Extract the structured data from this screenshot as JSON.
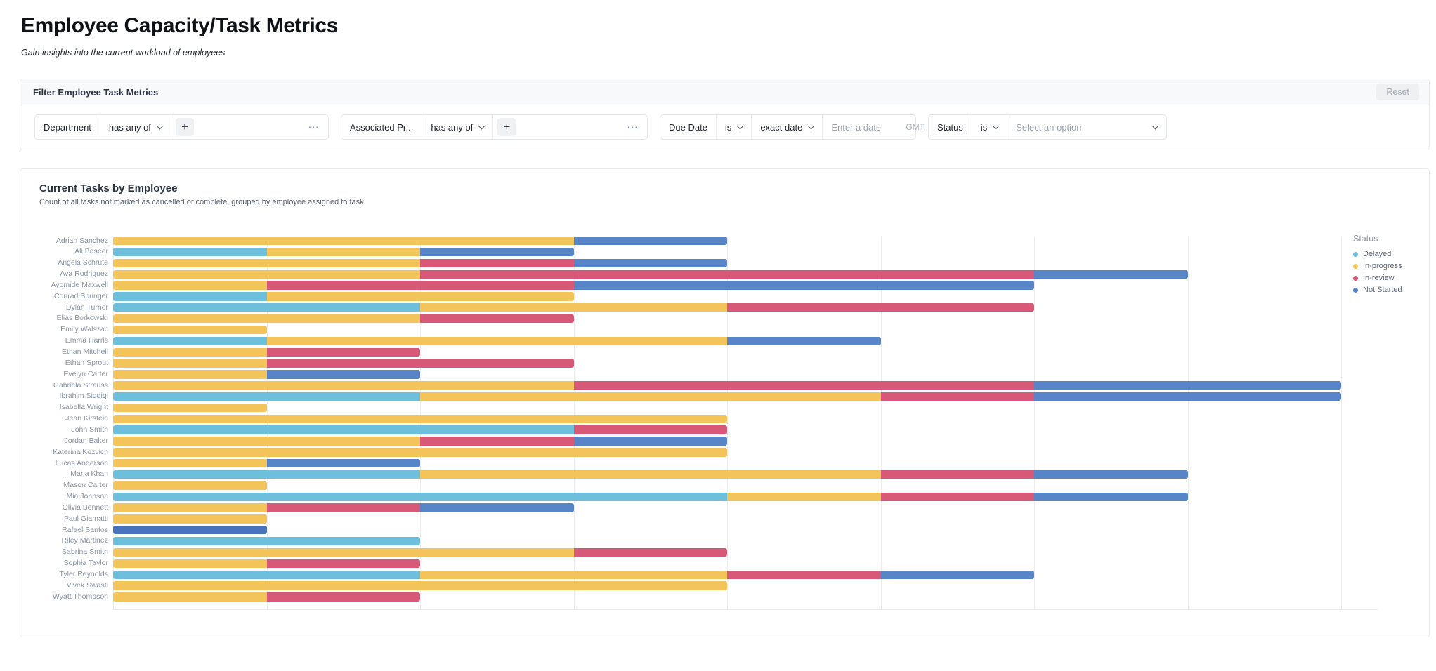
{
  "page": {
    "title": "Employee Capacity/Task Metrics",
    "subtitle": "Gain insights into the current workload of employees"
  },
  "filters": {
    "title": "Filter Employee Task Metrics",
    "reset": "Reset",
    "department": {
      "field": "Department",
      "operator": "has any of",
      "add": "+",
      "more": "···"
    },
    "project": {
      "field": "Associated Pr...",
      "operator": "has any of",
      "add": "+",
      "more": "···"
    },
    "due_date": {
      "field": "Due Date",
      "operator": "is",
      "mode": "exact date",
      "placeholder": "Enter a date",
      "timezone": "GMT"
    },
    "status": {
      "field": "Status",
      "operator": "is",
      "placeholder": "Select an option"
    }
  },
  "chart": {
    "title": "Current Tasks by Employee",
    "subtitle": "Count of all tasks not marked as cancelled or complete, grouped by employee assigned to task",
    "legend_title": "Status"
  },
  "chart_data": {
    "type": "bar",
    "orientation": "horizontal",
    "stacked": true,
    "grid": true,
    "legend_position": "right",
    "xlim": [
      0,
      8.25
    ],
    "x_gridline_interval": 1,
    "x_axis_labels_visible": false,
    "categories": [
      "Adrian Sanchez",
      "Ali Baseer",
      "Angela Schrute",
      "Ava Rodriguez",
      "Ayomide Maxwell",
      "Conrad Springer",
      "Dylan Turner",
      "Elias Borkowski",
      "Emily Walszac",
      "Emma Harris",
      "Ethan Mitchell",
      "Ethan Sprout",
      "Evelyn Carter",
      "Gabriela Strauss",
      "Ibrahim Siddiqi",
      "Isabella Wright",
      "Jean Kirstein",
      "John Smith",
      "Jordan Baker",
      "Katerina Kozvich",
      "Lucas Anderson",
      "Maria Khan",
      "Mason Carter",
      "Mia Johnson",
      "Olivia Bennett",
      "Paul Giamatti",
      "Rafael Santos",
      "Riley Martinez",
      "Sabrina Smith",
      "Sophia Taylor",
      "Tyler Reynolds",
      "Vivek Swasti",
      "Wyatt Thompson"
    ],
    "series": [
      {
        "name": "Delayed",
        "color": "#6dbfdb",
        "values": [
          0,
          1,
          0,
          0,
          0,
          1,
          2,
          0,
          0,
          1,
          0,
          0,
          0,
          0,
          2,
          0,
          0,
          3,
          0,
          0,
          0,
          2,
          0,
          4,
          0,
          0,
          0,
          2,
          0,
          0,
          2,
          0,
          0
        ]
      },
      {
        "name": "In-progress",
        "color": "#f2c45a",
        "values": [
          3,
          1,
          2,
          2,
          1,
          2,
          2,
          2,
          1,
          3,
          1,
          1,
          1,
          3,
          3,
          1,
          4,
          0,
          2,
          4,
          1,
          3,
          1,
          1,
          1,
          1,
          0,
          0,
          3,
          1,
          2,
          4,
          1
        ]
      },
      {
        "name": "In-review",
        "color": "#d85878",
        "values": [
          0,
          0,
          1,
          4,
          2,
          0,
          2,
          1,
          0,
          0,
          1,
          2,
          0,
          3,
          1,
          0,
          0,
          1,
          1,
          0,
          0,
          1,
          0,
          1,
          1,
          0,
          0,
          0,
          1,
          1,
          1,
          0,
          1
        ]
      },
      {
        "name": "Not Started",
        "color": "#5885c8",
        "values": [
          1,
          1,
          1,
          1,
          3,
          0,
          0,
          0,
          0,
          1,
          0,
          0,
          1,
          2,
          2,
          0,
          0,
          0,
          1,
          0,
          1,
          1,
          0,
          1,
          1,
          0,
          1,
          0,
          0,
          0,
          1,
          0,
          0
        ]
      }
    ],
    "highlight": {
      "category": "Rafael Santos",
      "series": "Not Started",
      "color": "#4a73be"
    }
  }
}
